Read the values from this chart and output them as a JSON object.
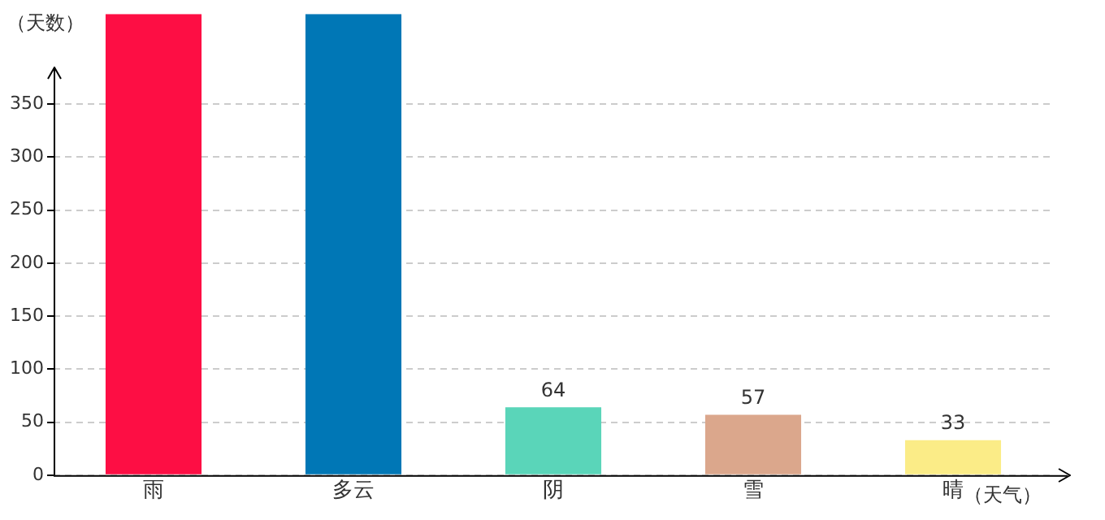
{
  "chart_data": {
    "type": "bar",
    "ylabel": "（天数）",
    "xlabel": "（天气）",
    "categories": [
      "雨",
      "多云",
      "阴",
      "雪",
      "晴"
    ],
    "values": [
      435,
      435,
      64,
      57,
      33
    ],
    "value_labels": [
      null,
      null,
      "64",
      "57",
      "33"
    ],
    "colors": [
      "#fd0e44",
      "#0077b6",
      "#5ad5b9",
      "#dba78c",
      "#fbec87"
    ],
    "ylim": [
      0,
      435
    ],
    "yticks": [
      0,
      50,
      100,
      150,
      200,
      250,
      300,
      350
    ],
    "grid": "y",
    "legend": false
  }
}
